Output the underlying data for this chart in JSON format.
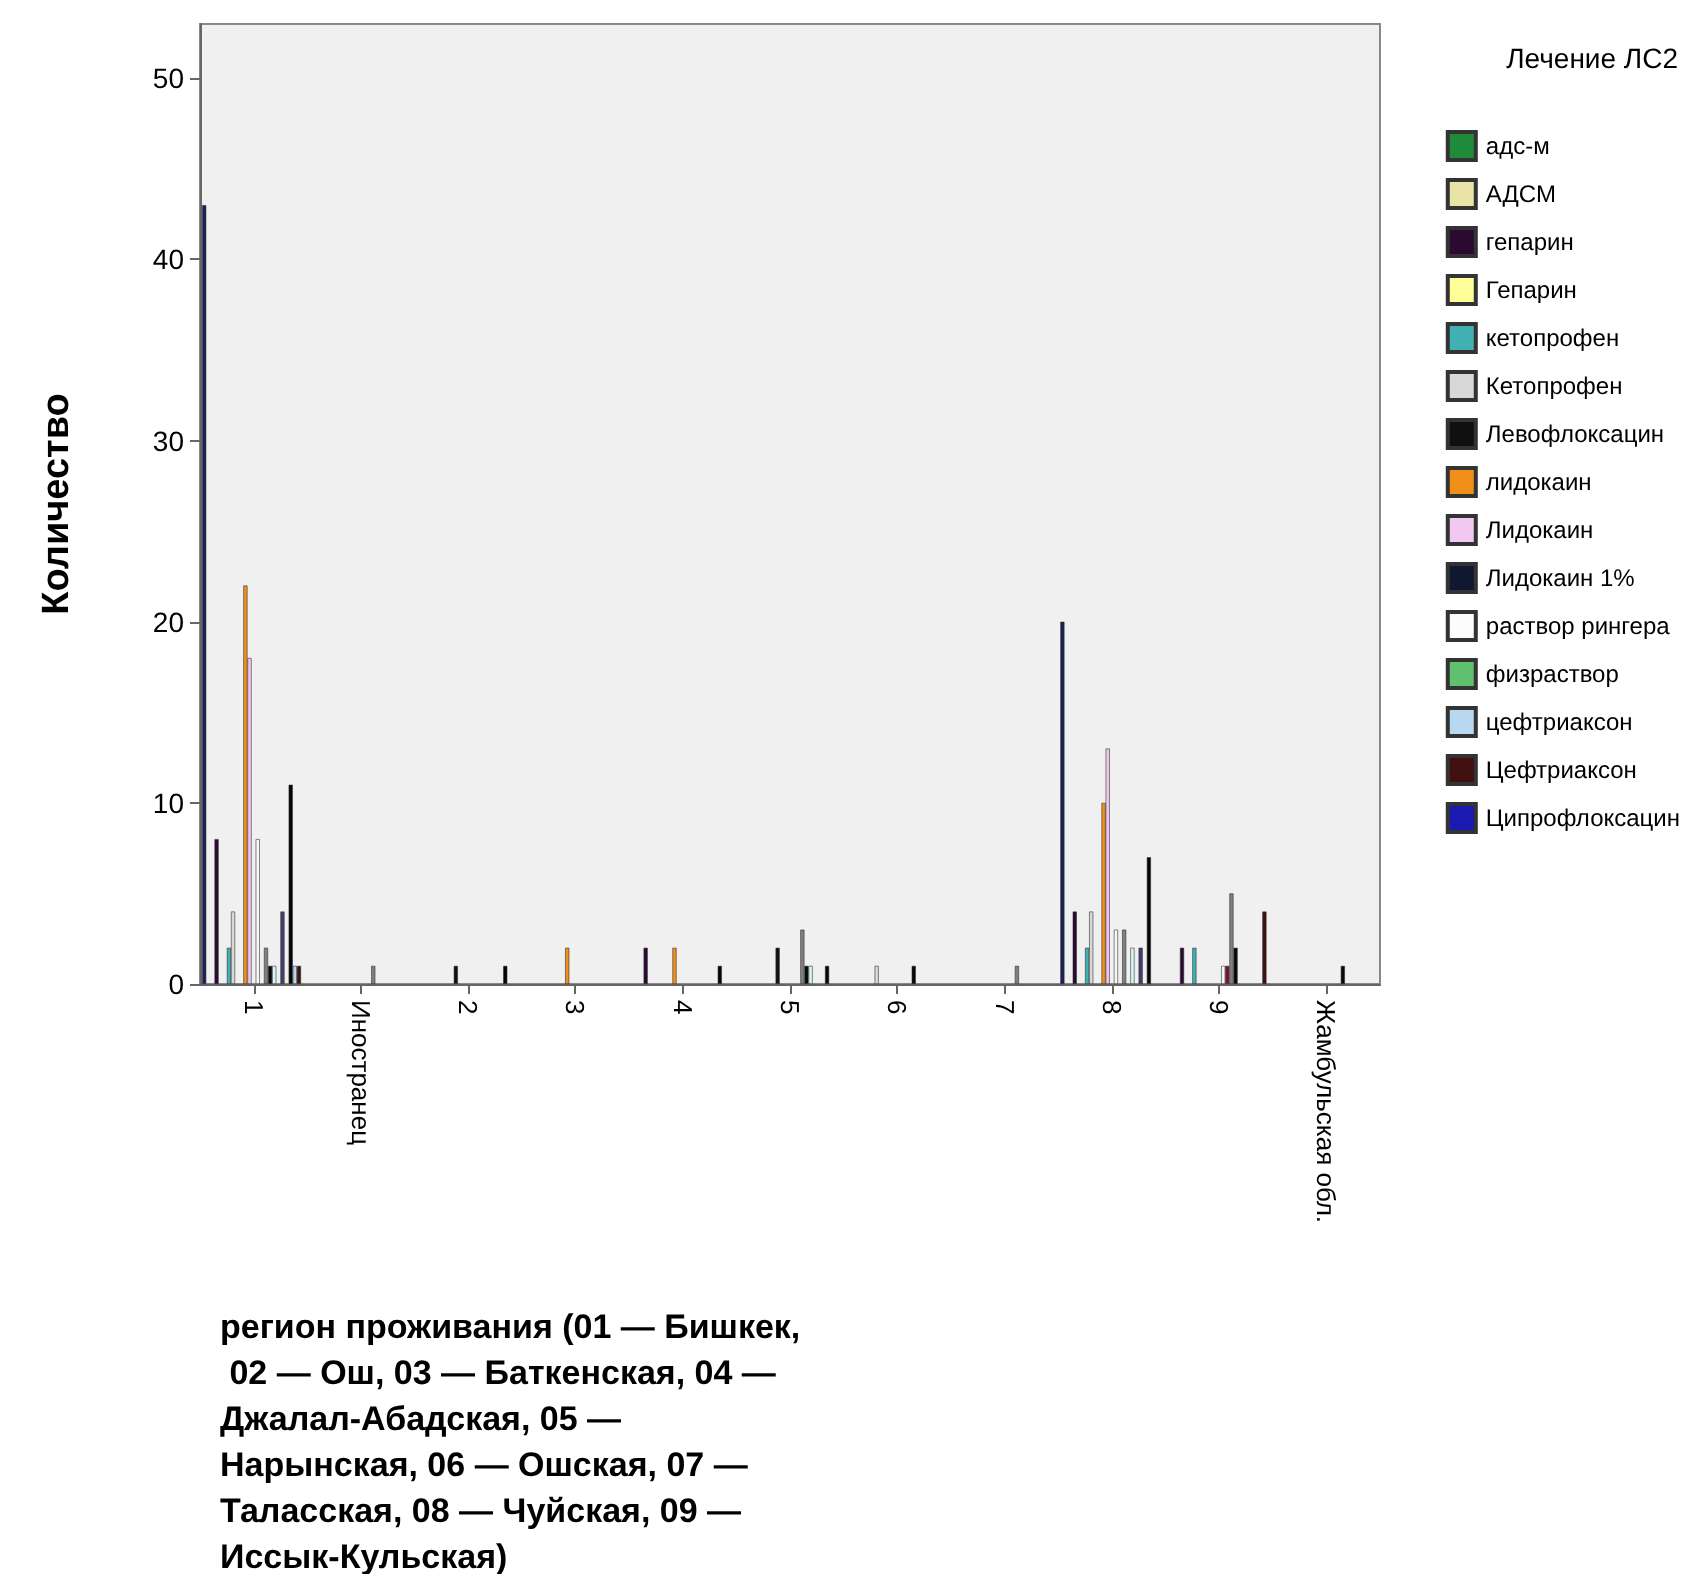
{
  "chart_data": {
    "type": "bar",
    "xlabel": "регион проживания (01 — Бишкек, 02 — Ош, 03 — Баткенская, 04 — Джалал-Абадская, 05 — Нарынская, 06 — Ошская, 07 — Таласская, 08 — Чуйская, 09 — Иссык-Кульская)",
    "ylabel": "Количество",
    "legend_title": "Лечение ЛС2",
    "categories": [
      "1",
      "Иностранец",
      "2",
      "3",
      "4",
      "5",
      "6",
      "7",
      "8",
      "9",
      "Жамбульская обл."
    ],
    "ylim": [
      0,
      53
    ],
    "yticks": [
      0,
      10,
      20,
      30,
      40,
      50
    ],
    "grid": false,
    "legend": "right",
    "series": [
      {
        "color": "#1a1f5c",
        "values": [
          43,
          null,
          null,
          null,
          null,
          null,
          null,
          null,
          20,
          null,
          null
        ]
      },
      {
        "name": "адс-м",
        "color": "#1e8a3a",
        "values": [
          null,
          null,
          null,
          null,
          null,
          null,
          null,
          null,
          null,
          null,
          null
        ]
      },
      {
        "name": "АДСМ",
        "color": "#e8e4a8",
        "values": [
          null,
          null,
          null,
          null,
          null,
          null,
          null,
          null,
          null,
          null,
          null
        ]
      },
      {
        "name": "гепарин",
        "color": "#2a0a30",
        "values": [
          8,
          null,
          null,
          null,
          2,
          null,
          null,
          null,
          4,
          2,
          null
        ]
      },
      {
        "name": "Гепарин",
        "color": "#ffff99",
        "values": [
          null,
          null,
          null,
          null,
          null,
          null,
          null,
          null,
          null,
          null,
          null
        ]
      },
      {
        "color": "#c00000",
        "values": [
          null,
          null,
          null,
          null,
          null,
          null,
          null,
          null,
          null,
          null,
          null
        ]
      },
      {
        "name": "кетопрофен",
        "color": "#40b0b0",
        "values": [
          2,
          null,
          null,
          null,
          null,
          null,
          null,
          null,
          2,
          2,
          null
        ]
      },
      {
        "name": "Кетопрофен",
        "color": "#d8d8d8",
        "values": [
          4,
          null,
          null,
          null,
          null,
          null,
          1,
          null,
          4,
          null,
          null
        ]
      },
      {
        "color": "#6a8fc0",
        "values": [
          null,
          null,
          null,
          null,
          null,
          null,
          null,
          null,
          null,
          null,
          null
        ]
      },
      {
        "name": "Левофлоксацин",
        "color": "#101010",
        "values": [
          null,
          null,
          1,
          null,
          null,
          2,
          null,
          null,
          null,
          null,
          null
        ]
      },
      {
        "name": "лидокаин",
        "color": "#f0901a",
        "values": [
          22,
          null,
          null,
          2,
          2,
          null,
          null,
          null,
          10,
          null,
          null
        ]
      },
      {
        "name": "Лидокаин",
        "color": "#f0c8f0",
        "values": [
          18,
          null,
          null,
          null,
          null,
          null,
          null,
          null,
          13,
          null,
          null
        ]
      },
      {
        "name": "Лидокаин 1%",
        "color": "#101830",
        "values": [
          null,
          null,
          null,
          null,
          null,
          null,
          null,
          null,
          null,
          null,
          null
        ]
      },
      {
        "color": "#f8f8f8",
        "values": [
          8,
          null,
          null,
          null,
          null,
          null,
          null,
          null,
          3,
          1,
          null
        ]
      },
      {
        "color": "#801040",
        "values": [
          null,
          null,
          null,
          null,
          null,
          null,
          null,
          null,
          null,
          1,
          null
        ]
      },
      {
        "color": "#808080",
        "values": [
          2,
          1,
          null,
          null,
          null,
          3,
          null,
          1,
          3,
          5,
          null
        ]
      },
      {
        "color": "#080808",
        "values": [
          1,
          null,
          null,
          null,
          null,
          1,
          1,
          null,
          null,
          2,
          1
        ]
      },
      {
        "color": "#d8f8f8",
        "values": [
          1,
          null,
          null,
          null,
          null,
          1,
          null,
          null,
          2,
          null,
          null
        ]
      },
      {
        "name": "раствор рингера",
        "color": "#fcfcfc",
        "values": [
          null,
          null,
          null,
          null,
          null,
          null,
          null,
          null,
          null,
          null,
          null
        ]
      },
      {
        "color": "#404070",
        "values": [
          4,
          null,
          null,
          null,
          null,
          null,
          null,
          null,
          2,
          null,
          null
        ]
      },
      {
        "name": "физраствор",
        "color": "#60c070",
        "values": [
          null,
          null,
          null,
          null,
          null,
          null,
          null,
          null,
          null,
          null,
          null
        ]
      },
      {
        "color": "#050505",
        "values": [
          11,
          null,
          1,
          null,
          1,
          1,
          null,
          null,
          7,
          null,
          null
        ]
      },
      {
        "name": "цефтриаксон",
        "color": "#b8d8f0",
        "values": [
          1,
          null,
          null,
          null,
          null,
          null,
          null,
          null,
          null,
          null,
          null
        ]
      },
      {
        "name": "Цефтриаксон",
        "color": "#401010",
        "values": [
          1,
          null,
          null,
          null,
          null,
          null,
          null,
          null,
          null,
          4,
          null
        ]
      },
      {
        "name": "Ципрофлоксацин",
        "color": "#1a1ab0",
        "values": [
          null,
          null,
          null,
          null,
          null,
          null,
          null,
          null,
          null,
          null,
          null
        ]
      }
    ]
  }
}
